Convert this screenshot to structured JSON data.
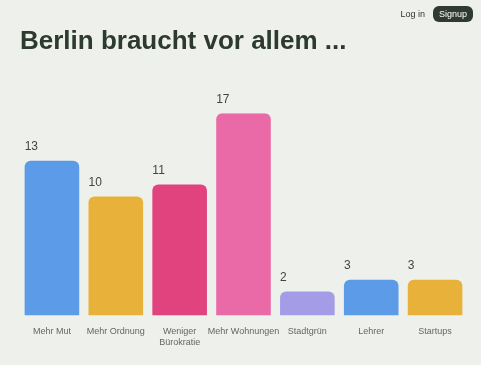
{
  "chart_data": {
    "type": "bar",
    "title": "Berlin braucht vor allem ...",
    "categories": [
      "Mehr Mut",
      "Mehr Ordnung",
      "Weniger Bürokratie",
      "Mehr Wohnungen",
      "Stadtgrün",
      "Lehrer",
      "Startups"
    ],
    "values": [
      13,
      10,
      11,
      17,
      2,
      3,
      3
    ],
    "colors": [
      "#5b9be8",
      "#e8b23a",
      "#e0437e",
      "#e96aa6",
      "#a59ce8",
      "#5b9be8",
      "#e8b23a"
    ],
    "ylim": [
      0,
      17
    ],
    "grid": false,
    "data_labels": true,
    "tick_labels": "x",
    "annotations": [
      "Log in",
      "Signup"
    ]
  }
}
